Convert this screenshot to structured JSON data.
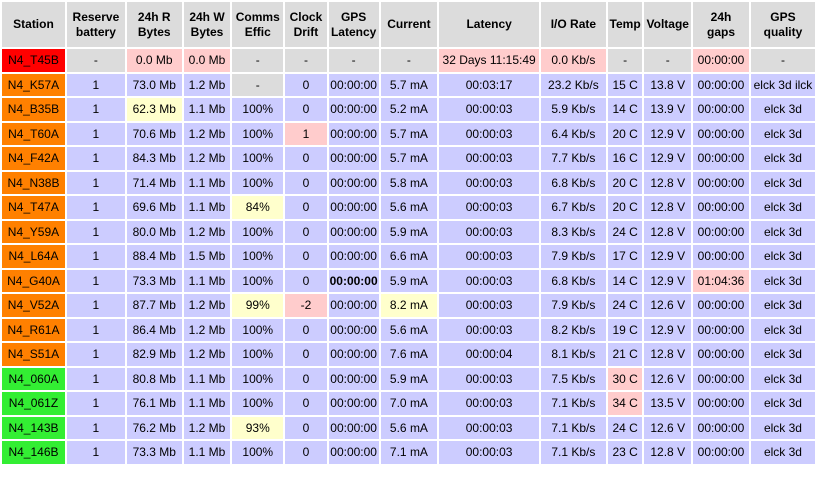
{
  "headers": [
    "Station",
    "Reserve battery",
    "24h R Bytes",
    "24h W Bytes",
    "Comms Effic",
    "Clock Drift",
    "GPS Latency",
    "Current",
    "Latency",
    "I/O Rate",
    "Temp",
    "Voltage",
    "24h gaps",
    "GPS quality"
  ],
  "rows": [
    {
      "station": "N4_T45B",
      "status": "red",
      "cells": [
        {
          "v": "-",
          "c": "gray"
        },
        {
          "v": "0.0 Mb",
          "c": "pink"
        },
        {
          "v": "0.0 Mb",
          "c": "pink"
        },
        {
          "v": "-",
          "c": "gray"
        },
        {
          "v": "-",
          "c": "gray"
        },
        {
          "v": "-",
          "c": "gray"
        },
        {
          "v": "-",
          "c": "gray"
        },
        {
          "v": "32 Days 11:15:49",
          "c": "pink"
        },
        {
          "v": "0.0 Kb/s",
          "c": "pink"
        },
        {
          "v": "-",
          "c": "gray"
        },
        {
          "v": "-",
          "c": "gray"
        },
        {
          "v": "00:00:00",
          "c": "pink"
        },
        {
          "v": "-",
          "c": "gray"
        }
      ]
    },
    {
      "station": "N4_K57A",
      "status": "orange",
      "cells": [
        {
          "v": "1"
        },
        {
          "v": "73.0 Mb"
        },
        {
          "v": "1.2 Mb"
        },
        {
          "v": "-",
          "c": "gray"
        },
        {
          "v": "0"
        },
        {
          "v": "00:00:00"
        },
        {
          "v": "5.7 mA"
        },
        {
          "v": "00:03:17"
        },
        {
          "v": "23.2 Kb/s"
        },
        {
          "v": "15 C"
        },
        {
          "v": "13.8 V"
        },
        {
          "v": "00:00:00"
        },
        {
          "v": "elck 3d ilck"
        }
      ]
    },
    {
      "station": "N4_B35B",
      "status": "orange",
      "cells": [
        {
          "v": "1"
        },
        {
          "v": "62.3 Mb",
          "c": "yellow"
        },
        {
          "v": "1.1 Mb"
        },
        {
          "v": "100%"
        },
        {
          "v": "0"
        },
        {
          "v": "00:00:00"
        },
        {
          "v": "5.2 mA"
        },
        {
          "v": "00:00:03"
        },
        {
          "v": "5.9 Kb/s"
        },
        {
          "v": "14 C"
        },
        {
          "v": "13.9 V"
        },
        {
          "v": "00:00:00"
        },
        {
          "v": "elck 3d"
        }
      ]
    },
    {
      "station": "N4_T60A",
      "status": "orange",
      "cells": [
        {
          "v": "1"
        },
        {
          "v": "70.6 Mb"
        },
        {
          "v": "1.2 Mb"
        },
        {
          "v": "100%"
        },
        {
          "v": "1",
          "c": "pink"
        },
        {
          "v": "00:00:00"
        },
        {
          "v": "5.7 mA"
        },
        {
          "v": "00:00:03"
        },
        {
          "v": "6.4 Kb/s"
        },
        {
          "v": "20 C"
        },
        {
          "v": "12.9 V"
        },
        {
          "v": "00:00:00"
        },
        {
          "v": "elck 3d"
        }
      ]
    },
    {
      "station": "N4_F42A",
      "status": "orange",
      "cells": [
        {
          "v": "1"
        },
        {
          "v": "84.3 Mb"
        },
        {
          "v": "1.2 Mb"
        },
        {
          "v": "100%"
        },
        {
          "v": "0"
        },
        {
          "v": "00:00:00"
        },
        {
          "v": "5.7 mA"
        },
        {
          "v": "00:00:03"
        },
        {
          "v": "7.7 Kb/s"
        },
        {
          "v": "16 C"
        },
        {
          "v": "12.9 V"
        },
        {
          "v": "00:00:00"
        },
        {
          "v": "elck 3d"
        }
      ]
    },
    {
      "station": "N4_N38B",
      "status": "orange",
      "cells": [
        {
          "v": "1"
        },
        {
          "v": "71.4 Mb"
        },
        {
          "v": "1.1 Mb"
        },
        {
          "v": "100%"
        },
        {
          "v": "0"
        },
        {
          "v": "00:00:00"
        },
        {
          "v": "5.8 mA"
        },
        {
          "v": "00:00:03"
        },
        {
          "v": "6.8 Kb/s"
        },
        {
          "v": "20 C"
        },
        {
          "v": "12.8 V"
        },
        {
          "v": "00:00:00"
        },
        {
          "v": "elck 3d"
        }
      ]
    },
    {
      "station": "N4_T47A",
      "status": "orange",
      "cells": [
        {
          "v": "1"
        },
        {
          "v": "69.6 Mb"
        },
        {
          "v": "1.1 Mb"
        },
        {
          "v": "84%",
          "c": "yellow"
        },
        {
          "v": "0"
        },
        {
          "v": "00:00:00"
        },
        {
          "v": "5.6 mA"
        },
        {
          "v": "00:00:03"
        },
        {
          "v": "6.7 Kb/s"
        },
        {
          "v": "20 C"
        },
        {
          "v": "12.8 V"
        },
        {
          "v": "00:00:00"
        },
        {
          "v": "elck 3d"
        }
      ]
    },
    {
      "station": "N4_Y59A",
      "status": "orange",
      "cells": [
        {
          "v": "1"
        },
        {
          "v": "80.0 Mb"
        },
        {
          "v": "1.2 Mb"
        },
        {
          "v": "100%"
        },
        {
          "v": "0"
        },
        {
          "v": "00:00:00"
        },
        {
          "v": "5.9 mA"
        },
        {
          "v": "00:00:03"
        },
        {
          "v": "8.3 Kb/s"
        },
        {
          "v": "24 C"
        },
        {
          "v": "12.8 V"
        },
        {
          "v": "00:00:00"
        },
        {
          "v": "elck 3d"
        }
      ]
    },
    {
      "station": "N4_L64A",
      "status": "orange",
      "cells": [
        {
          "v": "1"
        },
        {
          "v": "88.4 Mb"
        },
        {
          "v": "1.5 Mb"
        },
        {
          "v": "100%"
        },
        {
          "v": "0"
        },
        {
          "v": "00:00:00"
        },
        {
          "v": "6.6 mA"
        },
        {
          "v": "00:00:03"
        },
        {
          "v": "7.9 Kb/s"
        },
        {
          "v": "17 C"
        },
        {
          "v": "12.9 V"
        },
        {
          "v": "00:00:00"
        },
        {
          "v": "elck 3d"
        }
      ]
    },
    {
      "station": "N4_G40A",
      "status": "orange",
      "cells": [
        {
          "v": "1"
        },
        {
          "v": "73.3 Mb"
        },
        {
          "v": "1.1 Mb"
        },
        {
          "v": "100%"
        },
        {
          "v": "0"
        },
        {
          "v": "00:00:00",
          "c": "bold"
        },
        {
          "v": "5.9 mA"
        },
        {
          "v": "00:00:03"
        },
        {
          "v": "6.8 Kb/s"
        },
        {
          "v": "14 C"
        },
        {
          "v": "12.9 V"
        },
        {
          "v": "01:04:36",
          "c": "pink"
        },
        {
          "v": "elck 3d"
        }
      ]
    },
    {
      "station": "N4_V52A",
      "status": "orange",
      "cells": [
        {
          "v": "1"
        },
        {
          "v": "87.7 Mb"
        },
        {
          "v": "1.2 Mb"
        },
        {
          "v": "99%",
          "c": "yellow"
        },
        {
          "v": "-2",
          "c": "pink"
        },
        {
          "v": "00:00:00"
        },
        {
          "v": "8.2 mA",
          "c": "yellow"
        },
        {
          "v": "00:00:03"
        },
        {
          "v": "7.9 Kb/s"
        },
        {
          "v": "24 C"
        },
        {
          "v": "12.6 V"
        },
        {
          "v": "00:00:00"
        },
        {
          "v": "elck 3d"
        }
      ]
    },
    {
      "station": "N4_R61A",
      "status": "orange",
      "cells": [
        {
          "v": "1"
        },
        {
          "v": "86.4 Mb"
        },
        {
          "v": "1.2 Mb"
        },
        {
          "v": "100%"
        },
        {
          "v": "0"
        },
        {
          "v": "00:00:00"
        },
        {
          "v": "5.6 mA"
        },
        {
          "v": "00:00:03"
        },
        {
          "v": "8.2 Kb/s"
        },
        {
          "v": "19 C"
        },
        {
          "v": "12.9 V"
        },
        {
          "v": "00:00:00"
        },
        {
          "v": "elck 3d"
        }
      ]
    },
    {
      "station": "N4_S51A",
      "status": "orange",
      "cells": [
        {
          "v": "1"
        },
        {
          "v": "82.9 Mb"
        },
        {
          "v": "1.2 Mb"
        },
        {
          "v": "100%"
        },
        {
          "v": "0"
        },
        {
          "v": "00:00:00"
        },
        {
          "v": "7.6 mA"
        },
        {
          "v": "00:00:04"
        },
        {
          "v": "8.1 Kb/s"
        },
        {
          "v": "21 C"
        },
        {
          "v": "12.8 V"
        },
        {
          "v": "00:00:00"
        },
        {
          "v": "elck 3d"
        }
      ]
    },
    {
      "station": "N4_060A",
      "status": "green",
      "cells": [
        {
          "v": "1"
        },
        {
          "v": "80.8 Mb"
        },
        {
          "v": "1.1 Mb"
        },
        {
          "v": "100%"
        },
        {
          "v": "0"
        },
        {
          "v": "00:00:00"
        },
        {
          "v": "5.9 mA"
        },
        {
          "v": "00:00:03"
        },
        {
          "v": "7.5 Kb/s"
        },
        {
          "v": "30 C",
          "c": "pink"
        },
        {
          "v": "12.6 V"
        },
        {
          "v": "00:00:00"
        },
        {
          "v": "elck 3d"
        }
      ]
    },
    {
      "station": "N4_061Z",
      "status": "green",
      "cells": [
        {
          "v": "1"
        },
        {
          "v": "76.1 Mb"
        },
        {
          "v": "1.1 Mb"
        },
        {
          "v": "100%"
        },
        {
          "v": "0"
        },
        {
          "v": "00:00:00"
        },
        {
          "v": "7.0 mA"
        },
        {
          "v": "00:00:03"
        },
        {
          "v": "7.1 Kb/s"
        },
        {
          "v": "34 C",
          "c": "pink"
        },
        {
          "v": "13.5 V"
        },
        {
          "v": "00:00:00"
        },
        {
          "v": "elck 3d"
        }
      ]
    },
    {
      "station": "N4_143B",
      "status": "green",
      "cells": [
        {
          "v": "1"
        },
        {
          "v": "76.2 Mb"
        },
        {
          "v": "1.2 Mb"
        },
        {
          "v": "93%",
          "c": "yellow"
        },
        {
          "v": "0"
        },
        {
          "v": "00:00:00"
        },
        {
          "v": "5.6 mA"
        },
        {
          "v": "00:00:03"
        },
        {
          "v": "7.1 Kb/s"
        },
        {
          "v": "24 C"
        },
        {
          "v": "12.6 V"
        },
        {
          "v": "00:00:00"
        },
        {
          "v": "elck 3d"
        }
      ]
    },
    {
      "station": "N4_146B",
      "status": "green",
      "cells": [
        {
          "v": "1"
        },
        {
          "v": "73.3 Mb"
        },
        {
          "v": "1.1 Mb"
        },
        {
          "v": "100%"
        },
        {
          "v": "0"
        },
        {
          "v": "00:00:00"
        },
        {
          "v": "7.1 mA"
        },
        {
          "v": "00:00:03"
        },
        {
          "v": "7.1 Kb/s"
        },
        {
          "v": "23 C"
        },
        {
          "v": "12.8 V"
        },
        {
          "v": "00:00:00"
        },
        {
          "v": "elck 3d"
        }
      ]
    }
  ],
  "colors": {
    "status_red": "#ff0000",
    "status_orange": "#ff8000",
    "status_green": "#33ee33",
    "cell_normal": "#ccccff",
    "cell_na": "#dcdcdc",
    "cell_alert": "#ffcccc",
    "cell_warn": "#ffffcc"
  }
}
